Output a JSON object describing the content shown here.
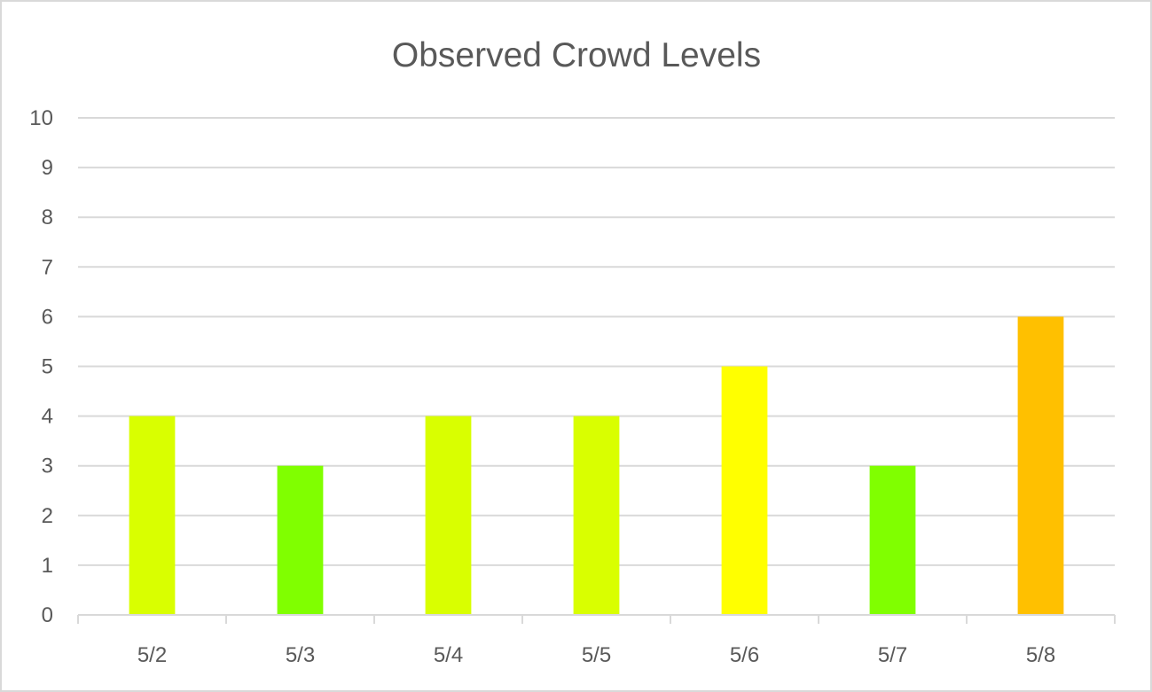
{
  "chart_data": {
    "type": "bar",
    "title": "Observed Crowd Levels",
    "xlabel": "",
    "ylabel": "",
    "categories": [
      "5/2",
      "5/3",
      "5/4",
      "5/5",
      "5/6",
      "5/7",
      "5/8"
    ],
    "values": [
      4,
      3,
      4,
      4,
      5,
      3,
      6
    ],
    "bar_colors": [
      "#d9ff00",
      "#80ff00",
      "#d9ff00",
      "#d9ff00",
      "#ffff00",
      "#80ff00",
      "#ffc000"
    ],
    "ylim": [
      0,
      10
    ],
    "yticks": [
      0,
      1,
      2,
      3,
      4,
      5,
      6,
      7,
      8,
      9,
      10
    ],
    "grid": true,
    "legend": "none",
    "colors": {
      "gridline": "#d9d9d9",
      "axis": "#d9d9d9",
      "text": "#595959"
    }
  }
}
